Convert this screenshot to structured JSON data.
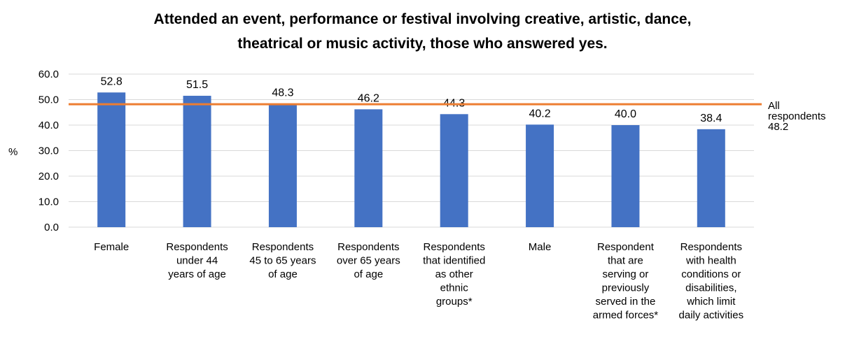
{
  "chart_data": {
    "type": "bar",
    "title_lines": [
      "Attended an event, performance or festival involving creative, artistic, dance,",
      "theatrical or music activity, those who answered yes."
    ],
    "ylabel": "%",
    "ylim": [
      0,
      60
    ],
    "yticks": [
      "0.0",
      "10.0",
      "20.0",
      "30.0",
      "40.0",
      "50.0",
      "60.0"
    ],
    "grid": true,
    "categories": [
      [
        "Female"
      ],
      [
        "Respondents",
        "under 44",
        "years of age"
      ],
      [
        "Respondents",
        "45 to 65 years",
        "of age"
      ],
      [
        "Respondents",
        "over 65 years",
        "of age"
      ],
      [
        "Respondents",
        "that identified",
        "as other",
        "ethnic",
        "groups*"
      ],
      [
        "Male"
      ],
      [
        "Respondent",
        "that are",
        "serving or",
        "previously",
        "served in the",
        "armed forces*"
      ],
      [
        "Respondents",
        "with health",
        "conditions or",
        "disabilities,",
        "which limit",
        "daily activities"
      ]
    ],
    "values": [
      52.8,
      51.5,
      48.3,
      46.2,
      44.3,
      40.2,
      40.0,
      38.4
    ],
    "value_labels": [
      "52.8",
      "51.5",
      "48.3",
      "46.2",
      "44.3",
      "40.2",
      "40.0",
      "38.4"
    ],
    "reference_line": {
      "value": 48.2,
      "label_lines": [
        "All",
        "respondents",
        "48.2"
      ],
      "color": "#ED7D31"
    },
    "bar_color": "#4472C4",
    "grid_color": "#D9D9D9"
  }
}
